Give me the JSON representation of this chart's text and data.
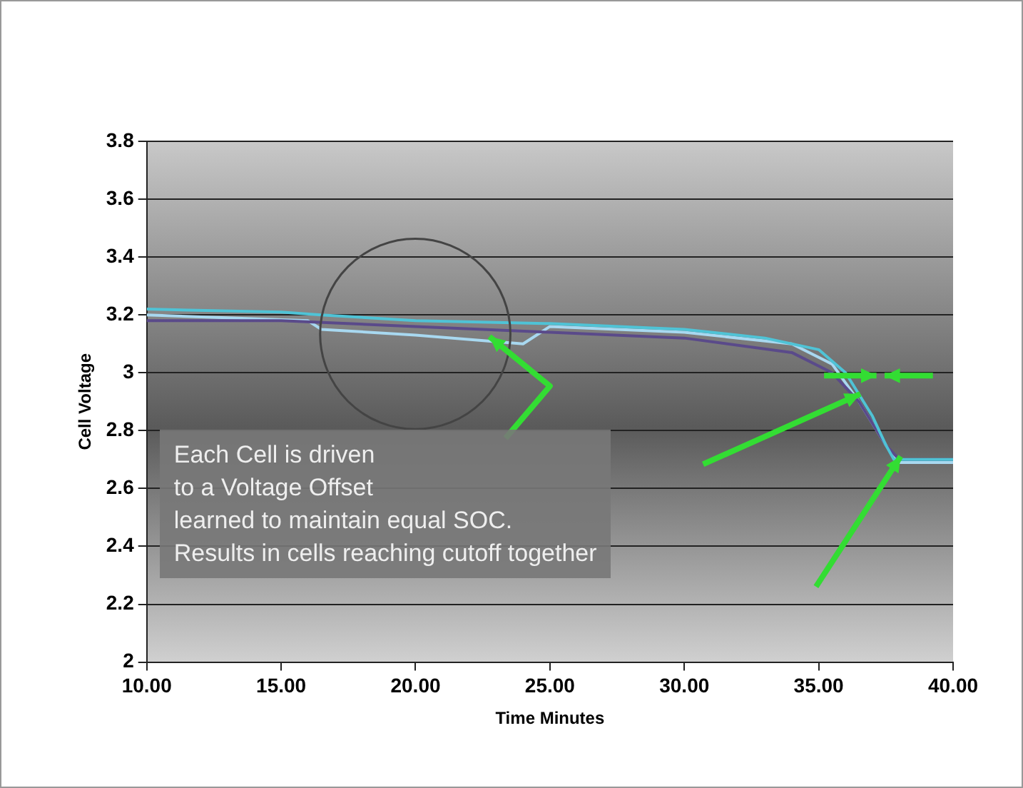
{
  "chart_data": {
    "type": "line",
    "xlabel": "Time Minutes",
    "ylabel": "Cell Voltage",
    "xlim": [
      10,
      40
    ],
    "xticks": [
      {
        "value": 10,
        "label": "10.00"
      },
      {
        "value": 15,
        "label": "15.00"
      },
      {
        "value": 20,
        "label": "20.00"
      },
      {
        "value": 25,
        "label": "25.00"
      },
      {
        "value": 30,
        "label": "30.00"
      },
      {
        "value": 35,
        "label": "35.00"
      },
      {
        "value": 40,
        "label": "40.00"
      }
    ],
    "ylim": [
      2,
      3.8
    ],
    "yticks": [
      2,
      2.2,
      2.4,
      2.6,
      2.8,
      3,
      3.2,
      3.4,
      3.6,
      3.8
    ],
    "grid": "y",
    "legend": false,
    "marker": "none",
    "series": [
      {
        "color": "#4fc3d6",
        "x": [
          10,
          15,
          16.5,
          20,
          25,
          30,
          33,
          35,
          36,
          37,
          37.5,
          37.8,
          40
        ],
        "values": [
          3.22,
          3.21,
          3.2,
          3.18,
          3.17,
          3.15,
          3.12,
          3.08,
          3,
          2.85,
          2.75,
          2.7,
          2.7
        ]
      },
      {
        "color": "#5a4a8a",
        "x": [
          10,
          15,
          20,
          25,
          30,
          34,
          35.5,
          36.5,
          37.5,
          38,
          40
        ],
        "values": [
          3.18,
          3.18,
          3.16,
          3.14,
          3.12,
          3.07,
          3,
          2.9,
          2.75,
          2.7,
          2.7
        ]
      },
      {
        "color": "#a8d8f0",
        "x": [
          10,
          16,
          16.5,
          20,
          24,
          25,
          30,
          34,
          35.5,
          36.5,
          37.5,
          38,
          40
        ],
        "values": [
          3.2,
          3.18,
          3.15,
          3.13,
          3.1,
          3.16,
          3.14,
          3.1,
          3.03,
          2.9,
          2.75,
          2.69,
          2.69
        ]
      }
    ],
    "annotations": [
      "Each Cell is driven\nto a Voltage Offset\nlearned to maintain equal SOC.\nResults in cells reaching cutoff together"
    ]
  }
}
